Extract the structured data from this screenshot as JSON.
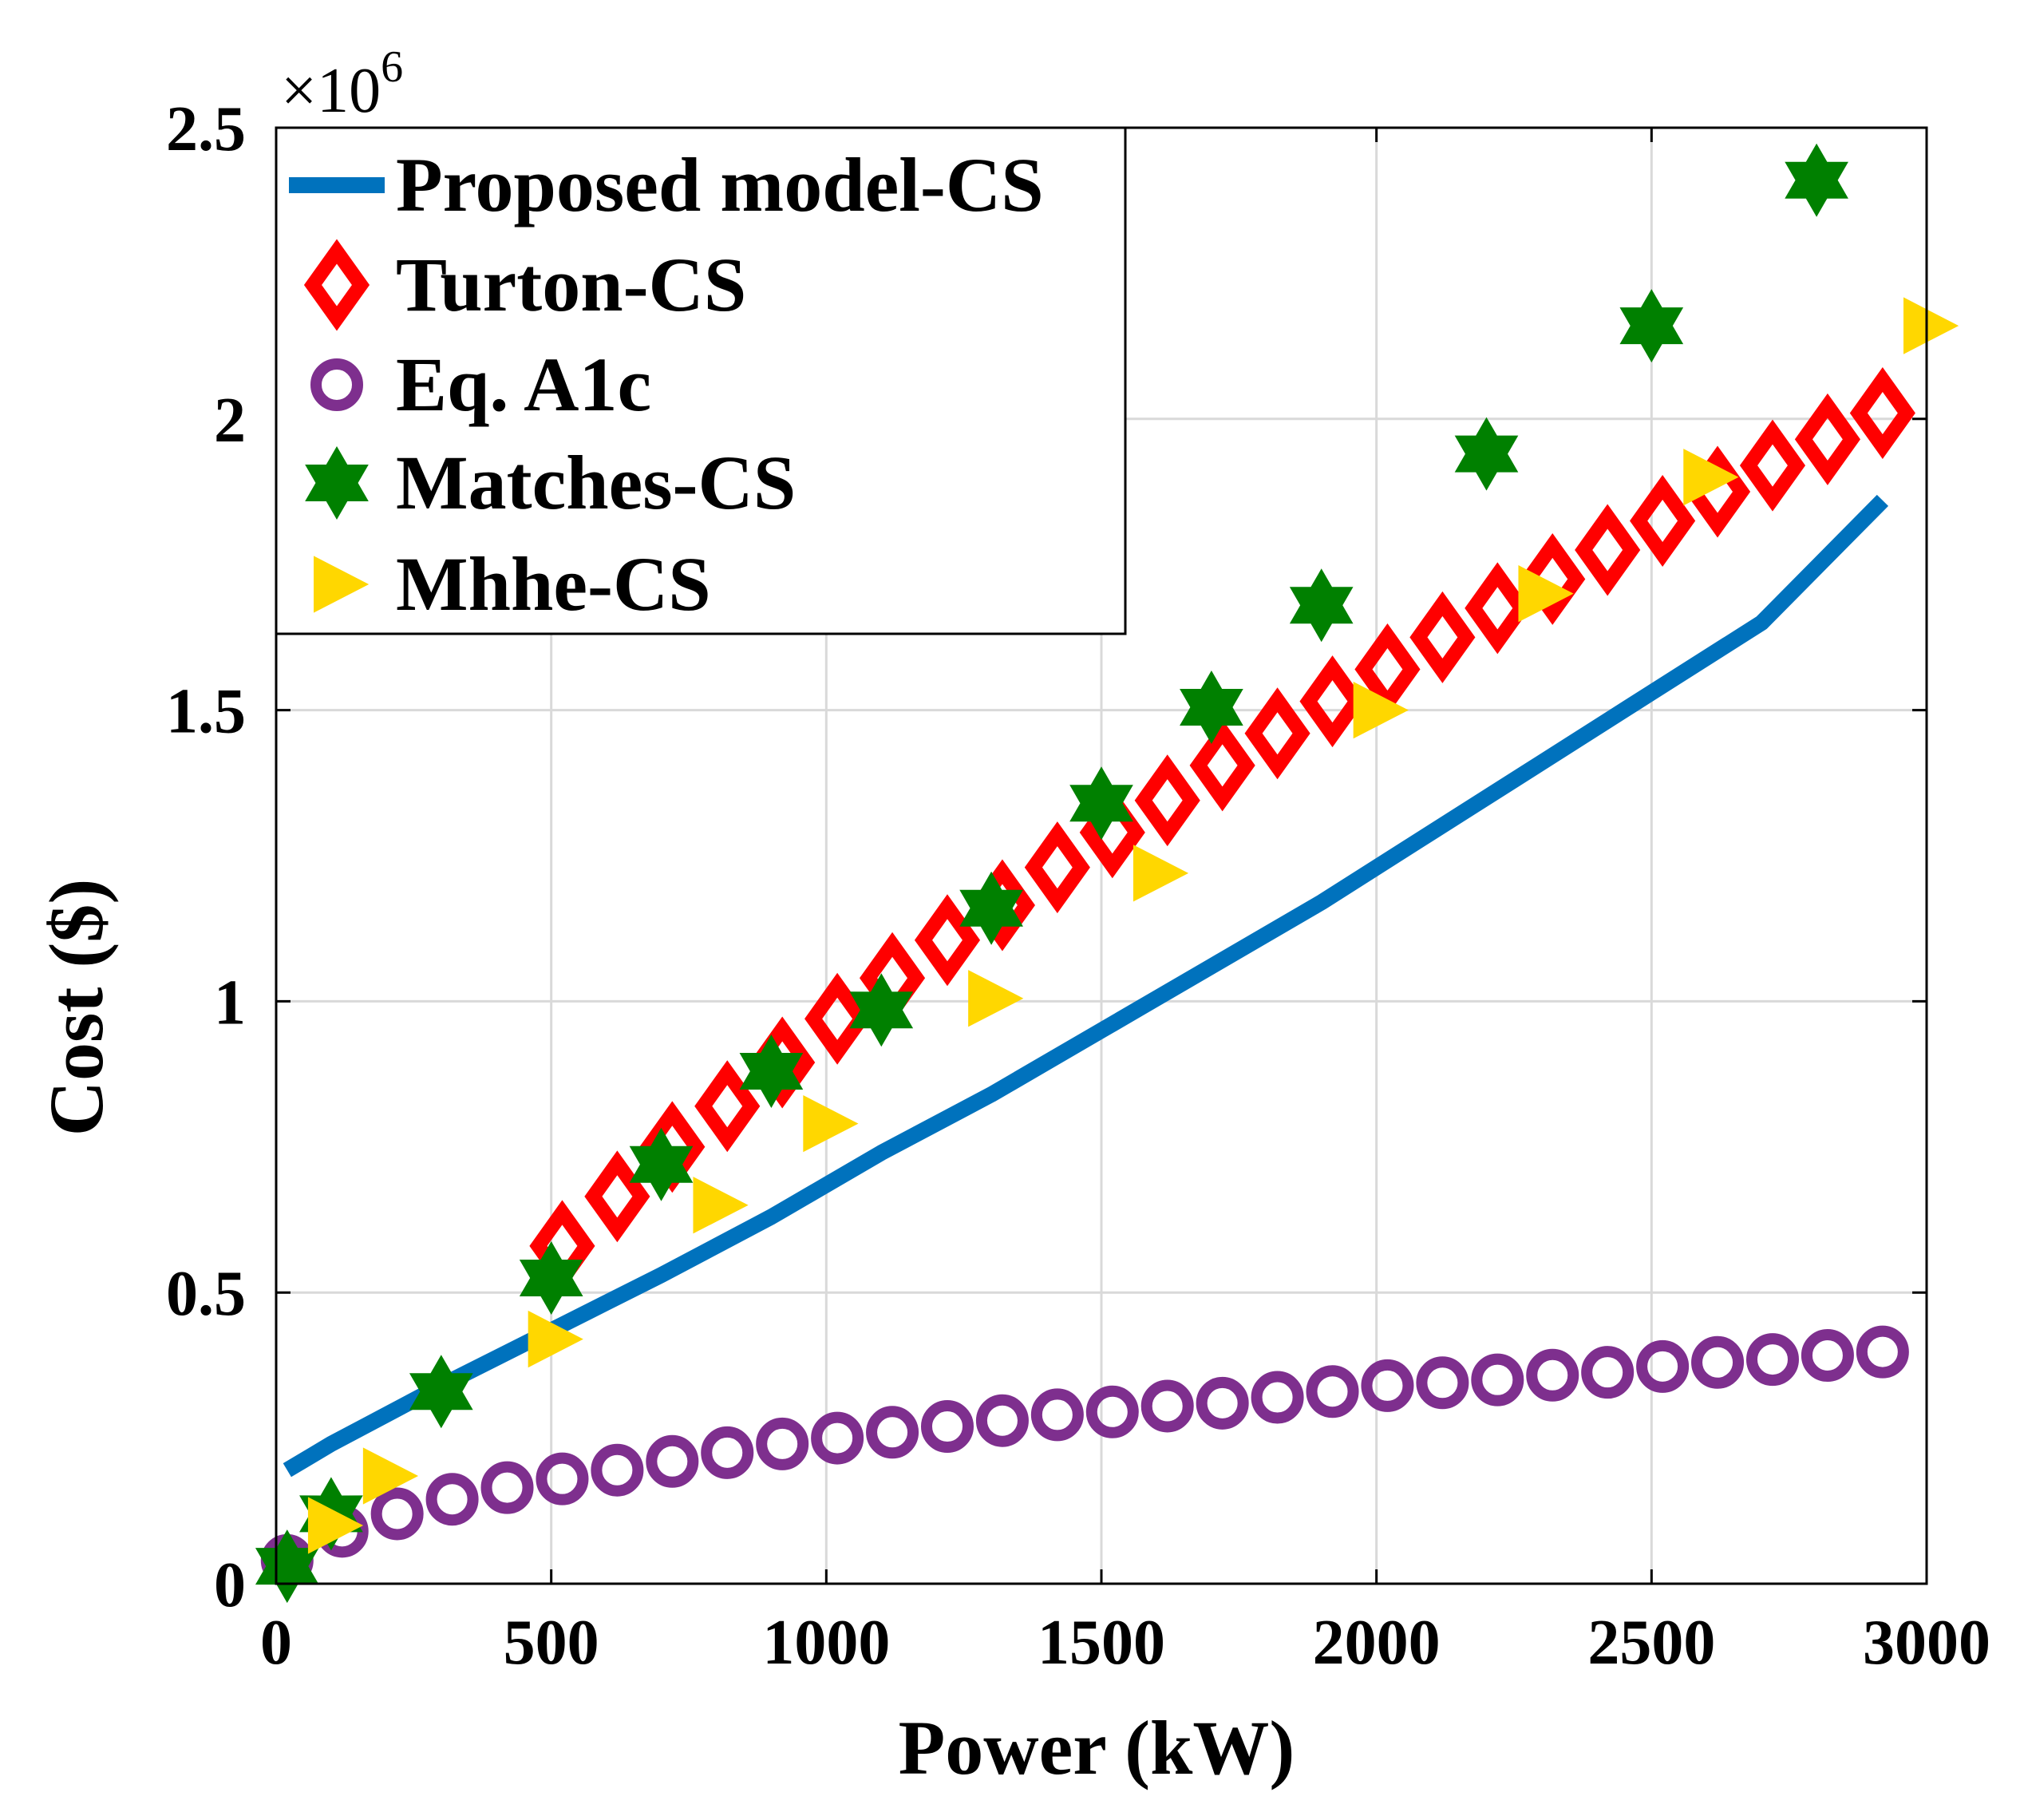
{
  "chart_data": {
    "type": "line",
    "xlabel": "Power (kW)",
    "ylabel": "Cost ($)",
    "multiplier": "×10",
    "multiplier_exp": "6",
    "xlim": [
      0,
      3000
    ],
    "ylim": [
      0,
      2500000
    ],
    "xticks": [
      0,
      500,
      1000,
      1500,
      2000,
      2500,
      3000
    ],
    "xtick_labels": [
      "0",
      "500",
      "1000",
      "1500",
      "2000",
      "2500",
      "3000"
    ],
    "yticks": [
      0,
      500000,
      1000000,
      1500000,
      2000000,
      2500000
    ],
    "ytick_labels": [
      "0",
      "0.5",
      "1",
      "1.5",
      "2",
      "2.5"
    ],
    "grid": true,
    "legend_position": "top-left",
    "series": [
      {
        "name": "Proposed model-CS",
        "kind": "line",
        "color": "#0072BD",
        "x": [
          20,
          100,
          300,
          500,
          700,
          900,
          1100,
          1300,
          1500,
          1700,
          1900,
          2100,
          2300,
          2500,
          2700,
          2920
        ],
        "y": [
          195000,
          240000,
          340000,
          435000,
          530000,
          630000,
          740000,
          840000,
          950000,
          1060000,
          1170000,
          1290000,
          1410000,
          1530000,
          1650000,
          1860000
        ]
      },
      {
        "name": "Turton-CS",
        "kind": "diamond",
        "color": "#FF0000",
        "x": [
          520,
          620,
          720,
          820,
          920,
          1020,
          1120,
          1220,
          1320,
          1420,
          1520,
          1620,
          1720,
          1820,
          1920,
          2020,
          2120,
          2220,
          2320,
          2420,
          2520,
          2620,
          2720,
          2820,
          2920
        ],
        "y": [
          580000,
          665000,
          750000,
          820000,
          895000,
          970000,
          1040000,
          1105000,
          1165000,
          1230000,
          1290000,
          1345000,
          1405000,
          1460000,
          1515000,
          1570000,
          1625000,
          1675000,
          1725000,
          1775000,
          1825000,
          1875000,
          1920000,
          1965000,
          2010000
        ]
      },
      {
        "name": "Eq. A1c",
        "kind": "circle",
        "color": "#7E2F8E",
        "x": [
          20,
          120,
          220,
          320,
          420,
          520,
          620,
          720,
          820,
          920,
          1020,
          1120,
          1220,
          1320,
          1420,
          1520,
          1620,
          1720,
          1820,
          1920,
          2020,
          2120,
          2220,
          2320,
          2420,
          2520,
          2620,
          2720,
          2820,
          2920
        ],
        "y": [
          40000,
          90000,
          120000,
          145000,
          165000,
          180000,
          195000,
          210000,
          225000,
          240000,
          250000,
          260000,
          270000,
          280000,
          290000,
          295000,
          305000,
          310000,
          320000,
          330000,
          340000,
          345000,
          350000,
          358000,
          363000,
          373000,
          380000,
          385000,
          392000,
          398000
        ]
      },
      {
        "name": "Matches-CS",
        "kind": "hexagram",
        "color": "#008000",
        "x": [
          20,
          100,
          300,
          500,
          700,
          900,
          1100,
          1300,
          1500,
          1700,
          1900,
          2200,
          2500,
          2800
        ],
        "y": [
          30000,
          120000,
          330000,
          525000,
          720000,
          880000,
          985000,
          1160000,
          1340000,
          1505000,
          1680000,
          1940000,
          2160000,
          2410000
        ]
      },
      {
        "name": "Mhhe-CS",
        "kind": "triangle-right",
        "color": "#FFD700",
        "x": [
          100,
          200,
          500,
          800,
          1000,
          1300,
          1600,
          2000,
          2300,
          2600,
          3000
        ],
        "y": [
          100000,
          185000,
          420000,
          650000,
          790000,
          1005000,
          1220000,
          1500000,
          1700000,
          1900000,
          2160000
        ]
      }
    ]
  }
}
